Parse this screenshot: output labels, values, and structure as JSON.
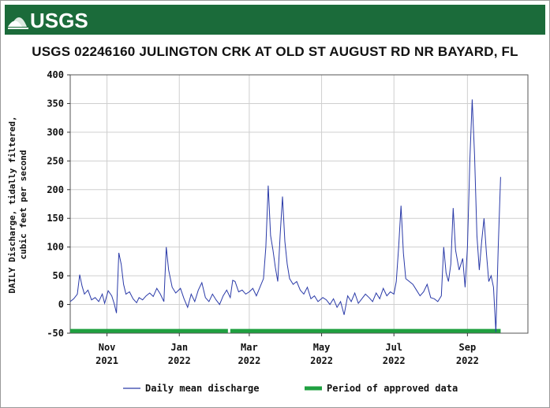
{
  "header": {
    "logo_text": "USGS",
    "title": "USGS 02246160 JULINGTON CRK AT OLD ST AUGUST RD NR BAYARD, FL"
  },
  "colors": {
    "banner": "#1b6b3a",
    "series": "#2a3aa8",
    "approved": "#1fa040",
    "grid": "#cfcfcf"
  },
  "chart_data": {
    "type": "line",
    "ylabel_lines": [
      "DAILY Discharge, tidally filtered,",
      "cubic feet per second"
    ],
    "ylim": [
      -50,
      400
    ],
    "yticks": [
      -50,
      0,
      50,
      100,
      150,
      200,
      250,
      300,
      350,
      400
    ],
    "xlim": [
      "2021-10-01",
      "2022-10-22"
    ],
    "xticks": [
      {
        "date": "2021-11-01",
        "month": "Nov",
        "year": "2021"
      },
      {
        "date": "2022-01-01",
        "month": "Jan",
        "year": "2022"
      },
      {
        "date": "2022-03-01",
        "month": "Mar",
        "year": "2022"
      },
      {
        "date": "2022-05-01",
        "month": "May",
        "year": "2022"
      },
      {
        "date": "2022-07-01",
        "month": "Jul",
        "year": "2022"
      },
      {
        "date": "2022-09-01",
        "month": "Sep",
        "year": "2022"
      }
    ],
    "grid": true,
    "series": [
      {
        "name": "Daily mean discharge",
        "points": [
          [
            "2021-10-01",
            5
          ],
          [
            "2021-10-04",
            10
          ],
          [
            "2021-10-07",
            18
          ],
          [
            "2021-10-09",
            52
          ],
          [
            "2021-10-11",
            32
          ],
          [
            "2021-10-13",
            18
          ],
          [
            "2021-10-16",
            25
          ],
          [
            "2021-10-19",
            8
          ],
          [
            "2021-10-22",
            12
          ],
          [
            "2021-10-25",
            5
          ],
          [
            "2021-10-28",
            18
          ],
          [
            "2021-10-30",
            2
          ],
          [
            "2021-11-02",
            24
          ],
          [
            "2021-11-05",
            15
          ],
          [
            "2021-11-07",
            2
          ],
          [
            "2021-11-09",
            -15
          ],
          [
            "2021-11-11",
            90
          ],
          [
            "2021-11-13",
            70
          ],
          [
            "2021-11-15",
            35
          ],
          [
            "2021-11-17",
            18
          ],
          [
            "2021-11-20",
            22
          ],
          [
            "2021-11-23",
            10
          ],
          [
            "2021-11-26",
            3
          ],
          [
            "2021-11-28",
            12
          ],
          [
            "2021-12-01",
            8
          ],
          [
            "2021-12-04",
            15
          ],
          [
            "2021-12-07",
            20
          ],
          [
            "2021-12-10",
            14
          ],
          [
            "2021-12-13",
            28
          ],
          [
            "2021-12-16",
            18
          ],
          [
            "2021-12-19",
            5
          ],
          [
            "2021-12-21",
            100
          ],
          [
            "2021-12-23",
            60
          ],
          [
            "2021-12-26",
            30
          ],
          [
            "2021-12-29",
            20
          ],
          [
            "2022-01-02",
            28
          ],
          [
            "2022-01-05",
            10
          ],
          [
            "2022-01-08",
            -5
          ],
          [
            "2022-01-11",
            18
          ],
          [
            "2022-01-14",
            5
          ],
          [
            "2022-01-17",
            25
          ],
          [
            "2022-01-20",
            38
          ],
          [
            "2022-01-23",
            12
          ],
          [
            "2022-01-26",
            5
          ],
          [
            "2022-01-29",
            18
          ],
          [
            "2022-02-01",
            8
          ],
          [
            "2022-02-04",
            0
          ],
          [
            "2022-02-07",
            15
          ],
          [
            "2022-02-10",
            25
          ],
          [
            "2022-02-13",
            12
          ],
          [
            "2022-02-15",
            42
          ],
          [
            "2022-02-17",
            40
          ],
          [
            "2022-02-20",
            22
          ],
          [
            "2022-02-23",
            25
          ],
          [
            "2022-02-26",
            18
          ],
          [
            "2022-03-01",
            22
          ],
          [
            "2022-03-04",
            28
          ],
          [
            "2022-03-07",
            15
          ],
          [
            "2022-03-10",
            30
          ],
          [
            "2022-03-13",
            45
          ],
          [
            "2022-03-15",
            100
          ],
          [
            "2022-03-17",
            207
          ],
          [
            "2022-03-19",
            120
          ],
          [
            "2022-03-21",
            95
          ],
          [
            "2022-03-23",
            65
          ],
          [
            "2022-03-25",
            40
          ],
          [
            "2022-03-27",
            120
          ],
          [
            "2022-03-29",
            188
          ],
          [
            "2022-03-31",
            110
          ],
          [
            "2022-04-02",
            70
          ],
          [
            "2022-04-04",
            45
          ],
          [
            "2022-04-07",
            35
          ],
          [
            "2022-04-10",
            40
          ],
          [
            "2022-04-13",
            25
          ],
          [
            "2022-04-16",
            18
          ],
          [
            "2022-04-19",
            30
          ],
          [
            "2022-04-22",
            10
          ],
          [
            "2022-04-25",
            15
          ],
          [
            "2022-04-28",
            5
          ],
          [
            "2022-05-02",
            12
          ],
          [
            "2022-05-05",
            8
          ],
          [
            "2022-05-08",
            0
          ],
          [
            "2022-05-11",
            10
          ],
          [
            "2022-05-14",
            -5
          ],
          [
            "2022-05-17",
            5
          ],
          [
            "2022-05-20",
            -18
          ],
          [
            "2022-05-23",
            15
          ],
          [
            "2022-05-26",
            5
          ],
          [
            "2022-05-29",
            20
          ],
          [
            "2022-06-01",
            2
          ],
          [
            "2022-06-04",
            10
          ],
          [
            "2022-06-07",
            18
          ],
          [
            "2022-06-10",
            12
          ],
          [
            "2022-06-13",
            5
          ],
          [
            "2022-06-16",
            20
          ],
          [
            "2022-06-19",
            10
          ],
          [
            "2022-06-22",
            28
          ],
          [
            "2022-06-25",
            15
          ],
          [
            "2022-06-28",
            22
          ],
          [
            "2022-07-01",
            18
          ],
          [
            "2022-07-03",
            40
          ],
          [
            "2022-07-05",
            100
          ],
          [
            "2022-07-07",
            172
          ],
          [
            "2022-07-09",
            90
          ],
          [
            "2022-07-11",
            45
          ],
          [
            "2022-07-14",
            40
          ],
          [
            "2022-07-17",
            35
          ],
          [
            "2022-07-20",
            25
          ],
          [
            "2022-07-23",
            15
          ],
          [
            "2022-07-26",
            22
          ],
          [
            "2022-07-29",
            35
          ],
          [
            "2022-08-01",
            12
          ],
          [
            "2022-08-04",
            10
          ],
          [
            "2022-08-07",
            5
          ],
          [
            "2022-08-10",
            15
          ],
          [
            "2022-08-12",
            100
          ],
          [
            "2022-08-14",
            55
          ],
          [
            "2022-08-16",
            40
          ],
          [
            "2022-08-18",
            70
          ],
          [
            "2022-08-20",
            168
          ],
          [
            "2022-08-22",
            95
          ],
          [
            "2022-08-25",
            60
          ],
          [
            "2022-08-28",
            80
          ],
          [
            "2022-08-30",
            30
          ],
          [
            "2022-09-01",
            100
          ],
          [
            "2022-09-03",
            250
          ],
          [
            "2022-09-05",
            357
          ],
          [
            "2022-09-07",
            260
          ],
          [
            "2022-09-09",
            120
          ],
          [
            "2022-09-11",
            60
          ],
          [
            "2022-09-13",
            110
          ],
          [
            "2022-09-15",
            150
          ],
          [
            "2022-09-17",
            90
          ],
          [
            "2022-09-19",
            40
          ],
          [
            "2022-09-21",
            50
          ],
          [
            "2022-09-23",
            30
          ],
          [
            "2022-09-25",
            -48
          ],
          [
            "2022-09-27",
            100
          ],
          [
            "2022-09-29",
            222
          ]
        ]
      }
    ],
    "approved_periods": [
      [
        "2021-10-01",
        "2022-02-11"
      ],
      [
        "2022-02-13",
        "2022-09-29"
      ]
    ],
    "approved_level": -46,
    "legend": [
      {
        "label": "Daily mean discharge",
        "kind": "line"
      },
      {
        "label": "Period of approved data",
        "kind": "bar"
      }
    ],
    "legend_position": "bottom"
  }
}
